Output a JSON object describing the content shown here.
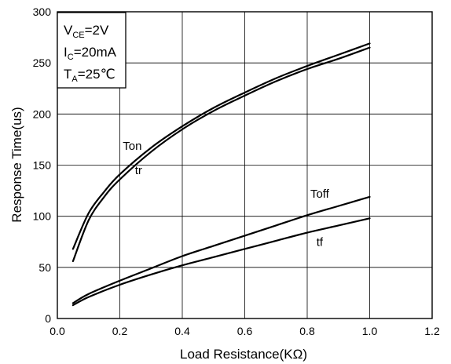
{
  "chart_data": {
    "type": "line",
    "xlabel": "Load Resistance(KΩ)",
    "ylabel": "Response Time(us)",
    "xlim": [
      0.0,
      1.2
    ],
    "ylim": [
      0,
      300
    ],
    "x_ticks": [
      0.0,
      0.2,
      0.4,
      0.6,
      0.8,
      1.0,
      1.2
    ],
    "x_tick_labels": [
      "0.0",
      "0.2",
      "0.4",
      "0.6",
      "0.8",
      "1.0",
      "1.2"
    ],
    "y_ticks": [
      0,
      50,
      100,
      150,
      200,
      250,
      300
    ],
    "y_tick_labels": [
      "0",
      "50",
      "100",
      "150",
      "200",
      "250",
      "300"
    ],
    "grid": true,
    "conditions": {
      "vce": {
        "main": "V",
        "sub": "CE",
        "rest": "=2V"
      },
      "ic": {
        "main": "I",
        "sub": "C",
        "rest": "=20mA"
      },
      "ta": {
        "main": "T",
        "sub": "A",
        "rest": "=25℃"
      }
    },
    "series": [
      {
        "name": "Ton",
        "x": [
          0.05,
          0.1,
          0.15,
          0.2,
          0.3,
          0.4,
          0.5,
          0.6,
          0.7,
          0.8,
          0.9,
          1.0
        ],
        "values": [
          68,
          103,
          124,
          141,
          167,
          188,
          206,
          221,
          235,
          247,
          258,
          269
        ]
      },
      {
        "name": "tr",
        "x": [
          0.05,
          0.1,
          0.15,
          0.2,
          0.3,
          0.4,
          0.5,
          0.6,
          0.7,
          0.8,
          0.9,
          1.0
        ],
        "values": [
          56,
          96,
          119,
          136,
          163,
          185,
          203,
          218,
          232,
          244,
          254,
          265
        ]
      },
      {
        "name": "Toff",
        "x": [
          0.05,
          0.1,
          0.2,
          0.3,
          0.4,
          0.5,
          0.6,
          0.7,
          0.8,
          0.9,
          1.0
        ],
        "values": [
          15,
          24,
          37,
          49,
          61,
          71,
          81,
          91,
          101,
          110,
          119
        ]
      },
      {
        "name": "tf",
        "x": [
          0.05,
          0.1,
          0.2,
          0.3,
          0.4,
          0.5,
          0.6,
          0.7,
          0.8,
          0.9,
          1.0
        ],
        "values": [
          13,
          21,
          33,
          43,
          52,
          60,
          68,
          76,
          84,
          91,
          98
        ]
      }
    ],
    "annotations": [
      {
        "series": "Ton",
        "text": "Ton",
        "at": [
          0.24,
          165
        ]
      },
      {
        "series": "tr",
        "text": "tr",
        "at": [
          0.26,
          141
        ]
      },
      {
        "series": "Toff",
        "text": "Toff",
        "at": [
          0.84,
          118
        ]
      },
      {
        "series": "tf",
        "text": "tf",
        "at": [
          0.84,
          71
        ]
      }
    ],
    "colors": {
      "line": "#000000",
      "grid": "#000000",
      "background": "#ffffff"
    }
  }
}
